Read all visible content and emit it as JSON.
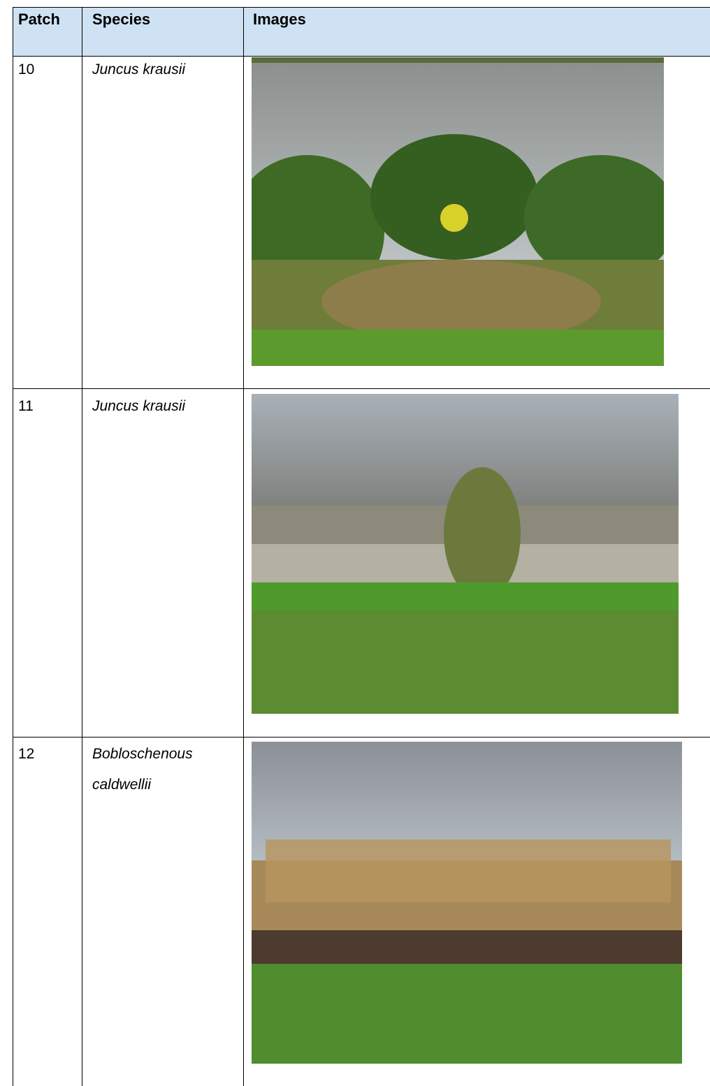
{
  "table": {
    "headers": [
      "Patch",
      "Species",
      "Images"
    ],
    "rows": [
      [
        "10",
        "Juncus krausii"
      ],
      [
        "11",
        "Juncus krausii"
      ],
      [
        "12",
        "Bobloschenous caldwellii"
      ]
    ]
  }
}
